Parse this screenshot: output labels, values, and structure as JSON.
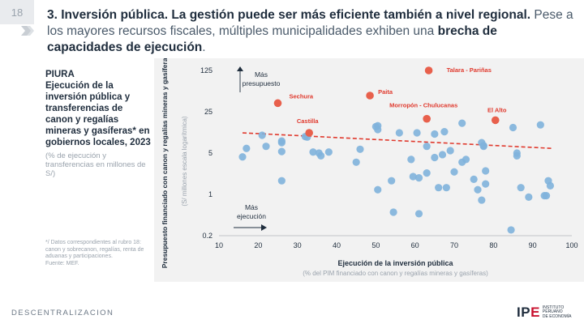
{
  "page_number": "18",
  "title": {
    "bold": "3. Inversión pública. La gestión puede ser más eficiente también a nivel regional.",
    "regular": " Pese a los mayores recursos fiscales, múltiples municipalidades exhiben una",
    "bold2": "brecha de capacidades de ejecución",
    "end": "."
  },
  "left_panel": {
    "region": "PIURA",
    "chart_title": "Ejecución de la inversión pública y transferencias de canon y regalías mineras y gasíferas* en gobiernos locales, 2023",
    "subtitle": "(% de ejecución y transferencias en millones de S/)"
  },
  "footnote": {
    "note": "*/ Datos correspondientes al rubro 18: canon y sobrecanon, regalías, renta de aduanas y participaciones.",
    "source": "Fuente: MEF."
  },
  "footer": {
    "section": "DESCENTRALIZACION"
  },
  "logo": {
    "acronym_ip": "IP",
    "acronym_e": "E",
    "line1": "INSTITUTO",
    "line2": "PERUANO",
    "line3": "DE ECONOMÍA"
  },
  "chart_data": {
    "type": "scatter",
    "xlabel": "Ejecución de la inversión pública",
    "xlabel_sub": "(% del PIM financiado con canon y regalías mineras y gasíferas)",
    "ylabel": "Presupuesto financiado con canon y regalías mineras y gasíferas",
    "ylabel_sub": "(S/ millones escala logarítmica)",
    "y_scale": "log",
    "xlim": [
      10,
      100
    ],
    "ylim": [
      0.2,
      125
    ],
    "x_ticks": [
      10,
      20,
      30,
      40,
      50,
      60,
      70,
      80,
      90,
      100
    ],
    "y_ticks": [
      0.2,
      1,
      5,
      25,
      125
    ],
    "annotations": {
      "more_budget": "Más presupuesto",
      "more_execution": "Más ejecución"
    },
    "colors": {
      "points": "#7fb2dc",
      "highlight": "#e8604c",
      "trend": "#e03a2e",
      "label": "#e03a2e"
    },
    "trendline": {
      "x": [
        16,
        95
      ],
      "y": [
        11.0,
        6.0
      ]
    },
    "highlighted": [
      {
        "label": "Talara - Pariñas",
        "x": 63.5,
        "y": 125
      },
      {
        "label": "Paita",
        "x": 48.5,
        "y": 47
      },
      {
        "label": "Sechura",
        "x": 25,
        "y": 35
      },
      {
        "label": "Morropón - Chulucanas",
        "x": 63,
        "y": 19
      },
      {
        "label": "El Alto",
        "x": 80.5,
        "y": 18
      },
      {
        "label": "Castilla",
        "x": 33,
        "y": 11
      }
    ],
    "points": [
      [
        16,
        4.3
      ],
      [
        17,
        6
      ],
      [
        21,
        10
      ],
      [
        22,
        6.5
      ],
      [
        26,
        8
      ],
      [
        26,
        7.5
      ],
      [
        26,
        5.3
      ],
      [
        26,
        1.7
      ],
      [
        32,
        9.5
      ],
      [
        32.5,
        9.3
      ],
      [
        34,
        5.2
      ],
      [
        35.5,
        5
      ],
      [
        36,
        4.5
      ],
      [
        38,
        5.2
      ],
      [
        45,
        3.5
      ],
      [
        46,
        5.8
      ],
      [
        50,
        14
      ],
      [
        50.5,
        14.5
      ],
      [
        50.5,
        12.5
      ],
      [
        50.5,
        1.2
      ],
      [
        54,
        1.7
      ],
      [
        54.5,
        0.5
      ],
      [
        56,
        11
      ],
      [
        59,
        3.9
      ],
      [
        59.5,
        2
      ],
      [
        60.5,
        11
      ],
      [
        61,
        0.47
      ],
      [
        61,
        1.9
      ],
      [
        63,
        6.5
      ],
      [
        63,
        2.3
      ],
      [
        65,
        4.2
      ],
      [
        65,
        10.5
      ],
      [
        66,
        1.3
      ],
      [
        67,
        4.7
      ],
      [
        67.5,
        11.5
      ],
      [
        68,
        1.3
      ],
      [
        69,
        5.5
      ],
      [
        70,
        2.4
      ],
      [
        72,
        3.5
      ],
      [
        72,
        16
      ],
      [
        73,
        3.9
      ],
      [
        75,
        1.8
      ],
      [
        76,
        1.2
      ],
      [
        77,
        7.5
      ],
      [
        77,
        0.8
      ],
      [
        77.5,
        6.5
      ],
      [
        77.5,
        6.7
      ],
      [
        78,
        1.5
      ],
      [
        78,
        2.5
      ],
      [
        85,
        13.5
      ],
      [
        86,
        5
      ],
      [
        86,
        4.5
      ],
      [
        87,
        1.3
      ],
      [
        84.5,
        0.25
      ],
      [
        89,
        0.9
      ],
      [
        92,
        15
      ],
      [
        93,
        0.95
      ],
      [
        93.5,
        0.95
      ],
      [
        94,
        1.7
      ],
      [
        94.5,
        1.4
      ]
    ]
  }
}
